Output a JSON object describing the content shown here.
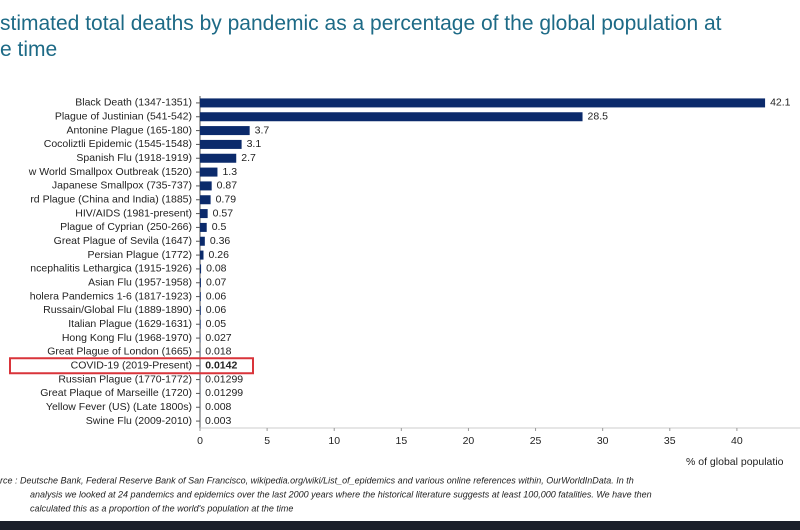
{
  "chart_data": {
    "type": "barh",
    "title": [
      "stimated total deaths by pandemic as a percentage of the global population at",
      "e time"
    ],
    "categories": [
      "Black Death (1347-1351)",
      "Plague of Justinian (541-542)",
      "Antonine Plague (165-180)",
      "Cocoliztli Epidemic (1545-1548)",
      "Spanish Flu (1918-1919)",
      "w World Smallpox Outbreak (1520)",
      "Japanese Smallpox (735-737)",
      "rd Plague (China and India) (1885)",
      "HIV/AIDS (1981-present)",
      "Plague of Cyprian (250-266)",
      "Great Plague of Sevila (1647)",
      "Persian Plague (1772)",
      "ncephalitis Lethargica (1915-1926)",
      "Asian Flu (1957-1958)",
      "holera Pandemics 1-6 (1817-1923)",
      "Russain/Global Flu (1889-1890)",
      "Italian Plague (1629-1631)",
      "Hong Kong Flu (1968-1970)",
      "Great Plague of London (1665)",
      "COVID-19 (2019-Present)",
      "Russian Plague (1770-1772)",
      "Great Plaque of Marseille (1720)",
      "Yellow Fever (US) (Late 1800s)",
      "Swine Flu (2009-2010)"
    ],
    "values": [
      42.1,
      28.5,
      3.7,
      3.1,
      2.7,
      1.3,
      0.87,
      0.79,
      0.57,
      0.5,
      0.36,
      0.26,
      0.08,
      0.07,
      0.06,
      0.06,
      0.05,
      0.027,
      0.018,
      0.0142,
      0.01299,
      0.01299,
      0.008,
      0.003
    ],
    "color": "#0b2a6b",
    "highlight_index": 19,
    "highlight_color": "#d9343a",
    "xlim": [
      0,
      45
    ],
    "xticks": [
      0,
      5,
      10,
      15,
      20,
      25,
      30,
      35,
      40
    ],
    "xlabel": "% of global populatio",
    "source": [
      "rce : Deutsche Bank, Federal Reserve Bank of San Francisco, wikipedia.org/wiki/List_of_epidemics and various online references within, OurWorldInData. In th",
      "analysis we looked at 24 pandemics and epidemics over the last 2000 years where the historical literature suggests at least 100,000 fatalities. We have then",
      "calculated this as a proportion of the world's population at the time"
    ]
  }
}
